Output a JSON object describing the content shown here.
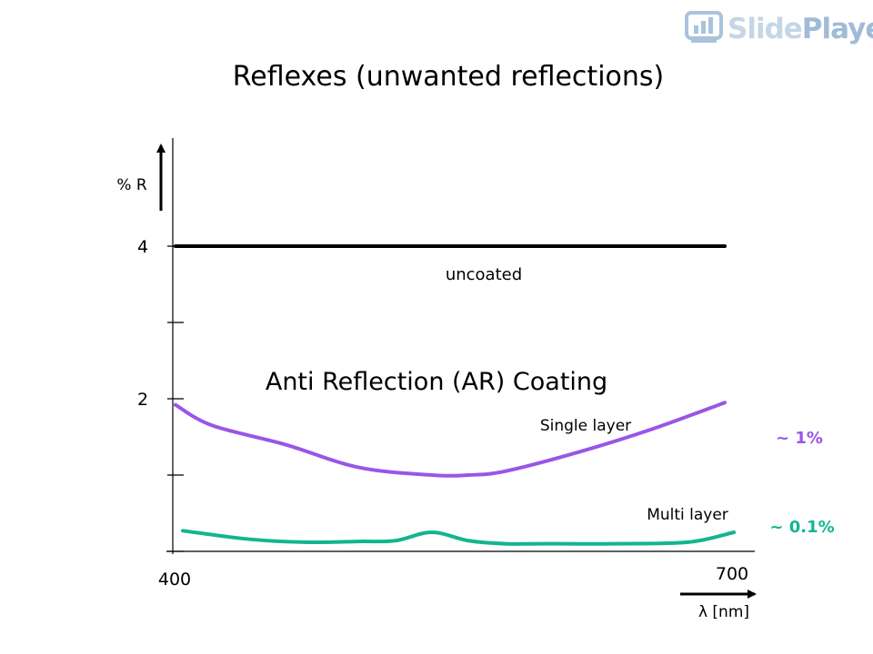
{
  "logo": {
    "part1": "Slide",
    "part2": "Player"
  },
  "chart_data": {
    "type": "line",
    "title": "Reflexes (unwanted reflections)",
    "xlabel": "λ [nm]",
    "ylabel": "% R",
    "xlim": [
      400,
      700
    ],
    "ylim": [
      0,
      4.85
    ],
    "x_ticks": [
      400,
      700
    ],
    "y_ticks": [
      {
        "value": 4,
        "label": "4"
      },
      {
        "value": 3,
        "label": ""
      },
      {
        "value": 2,
        "label": "2"
      },
      {
        "value": 1,
        "label": ""
      },
      {
        "value": 0,
        "label": ""
      }
    ],
    "annotations": {
      "uncoated": "uncoated",
      "ar_coating": "Anti Reflection (AR) Coating",
      "single_layer": "Single layer",
      "multi_layer": "Multi layer",
      "single_value": "~ 1%",
      "multi_value": "~ 0.1%"
    },
    "series": [
      {
        "key": "uncoated",
        "color": "#000000",
        "x": [
          400,
          700
        ],
        "y": [
          4.0,
          4.0
        ]
      },
      {
        "key": "single",
        "color": "#9a55e8",
        "x": [
          400,
          420,
          460,
          500,
          540,
          560,
          580,
          620,
          660,
          700
        ],
        "y": [
          1.92,
          1.65,
          1.4,
          1.1,
          1.0,
          1.0,
          1.05,
          1.3,
          1.6,
          1.95
        ]
      },
      {
        "key": "multi",
        "color": "#12b590",
        "x": [
          404,
          440,
          470,
          500,
          520,
          540,
          560,
          580,
          600,
          640,
          680,
          705
        ],
        "y": [
          0.27,
          0.16,
          0.12,
          0.13,
          0.14,
          0.25,
          0.14,
          0.1,
          0.1,
          0.1,
          0.12,
          0.25
        ]
      }
    ],
    "colors": {
      "single_text": "#9a55e8",
      "multi_text": "#12b590"
    }
  }
}
